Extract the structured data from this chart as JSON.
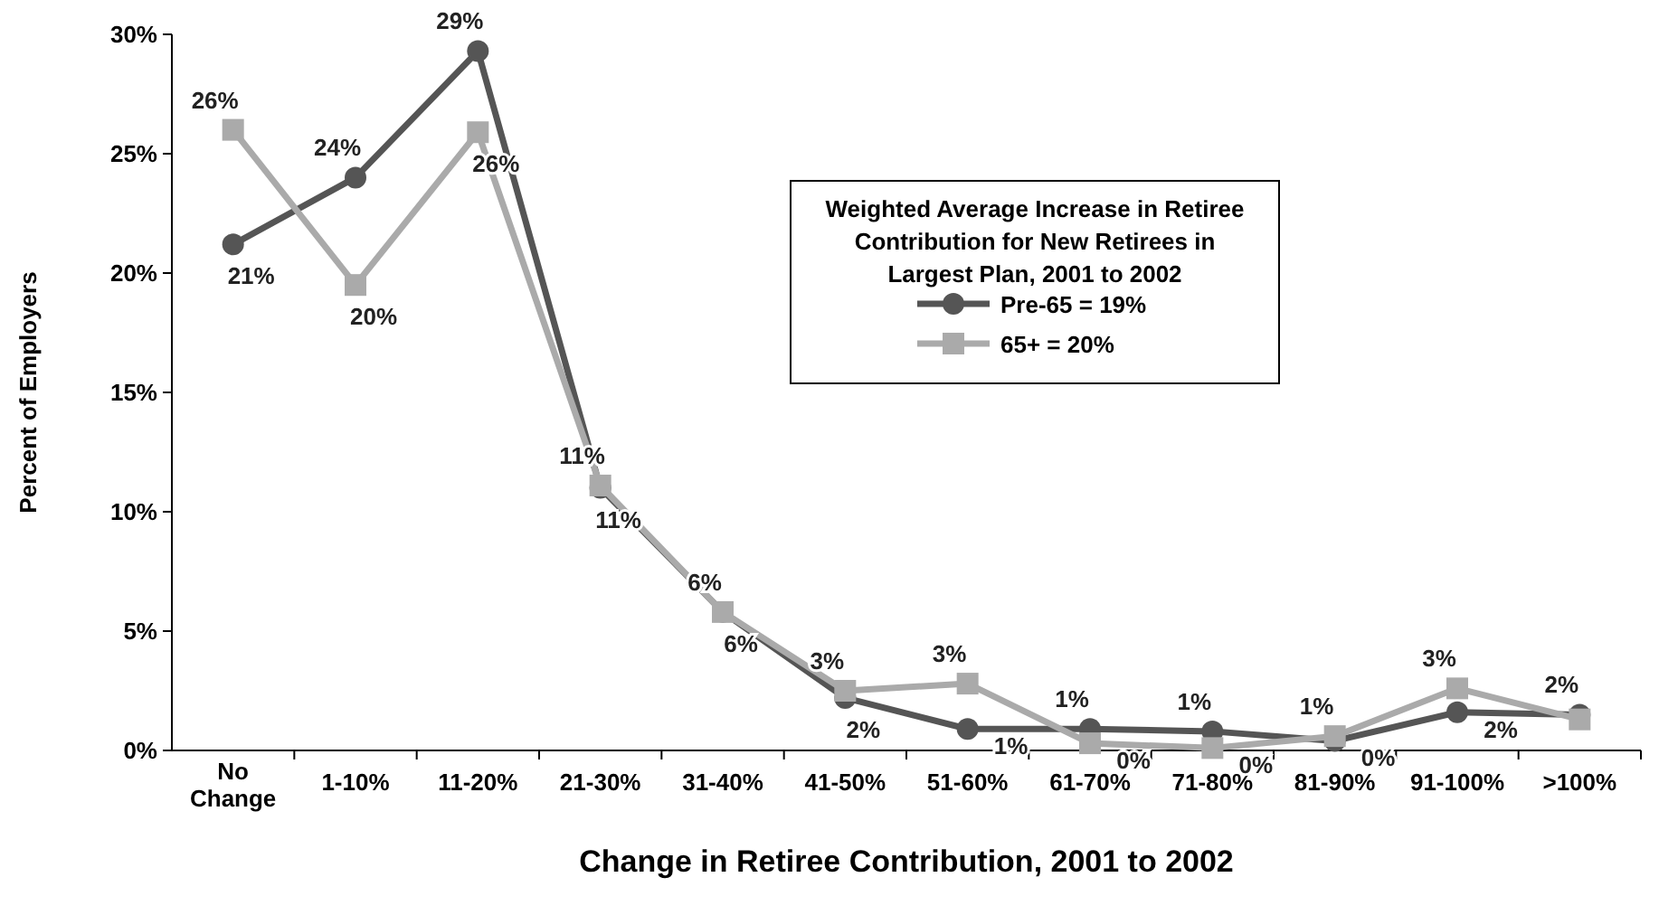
{
  "chart_data": {
    "type": "line",
    "xlabel": "Change in Retiree Contribution, 2001 to 2002",
    "ylabel": "Percent of Employers",
    "categories": [
      "No Change",
      "1-10%",
      "11-20%",
      "21-30%",
      "31-40%",
      "41-50%",
      "51-60%",
      "61-70%",
      "71-80%",
      "81-90%",
      "91-100%",
      ">100%"
    ],
    "ylim": [
      0,
      30
    ],
    "yticks": [
      {
        "value": 0,
        "label": "0%"
      },
      {
        "value": 5,
        "label": "5%"
      },
      {
        "value": 10,
        "label": "10%"
      },
      {
        "value": 15,
        "label": "15%"
      },
      {
        "value": 20,
        "label": "20%"
      },
      {
        "value": 25,
        "label": "25%"
      },
      {
        "value": 30,
        "label": "30%"
      }
    ],
    "grid": false,
    "legend": "top right",
    "legend_title": "Weighted Average Increase in Retiree Contribution for New Retirees in Largest Plan, 2001 to 2002",
    "line_style": "solid",
    "series": [
      {
        "name": "Pre-65 = 19%",
        "color": "#555555",
        "marker": "circle",
        "values": [
          21.2,
          24,
          29.3,
          11,
          5.8,
          2.2,
          0.9,
          0.9,
          0.8,
          0.4,
          1.6,
          1.5
        ],
        "value_labels": [
          "21%",
          "24%",
          "29%",
          "11%",
          "6%",
          "2%",
          "1%",
          "1%",
          "1%",
          "0%",
          "2%",
          "2%"
        ]
      },
      {
        "name": "65+ = 20%",
        "color": "#aaaaaa",
        "marker": "square",
        "values": [
          26,
          19.5,
          25.9,
          11.1,
          5.8,
          2.5,
          2.8,
          0.3,
          0.1,
          0.6,
          2.6,
          1.3
        ],
        "value_labels": [
          "26%",
          "20%",
          "26%",
          "11%",
          "6%",
          "3%",
          "3%",
          "0%",
          "0%",
          "1%",
          "3%",
          null
        ]
      }
    ]
  }
}
